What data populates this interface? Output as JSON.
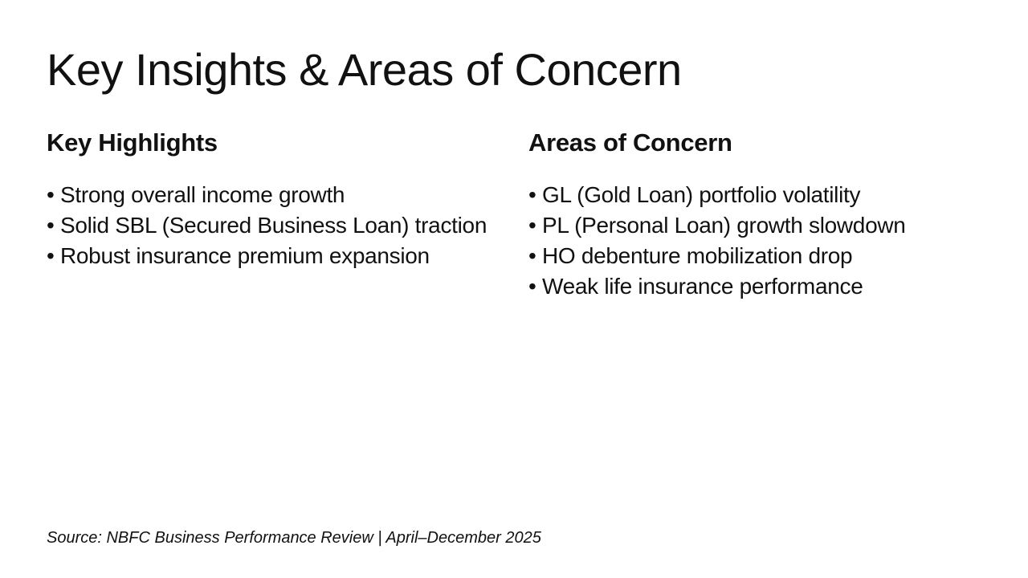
{
  "slide": {
    "title": "Key Insights & Areas of Concern",
    "bullet_char": "•",
    "columns": [
      {
        "heading": "Key Highlights",
        "bullets": [
          "Strong overall income growth",
          "Solid SBL (Secured Business Loan) traction",
          "Robust insurance premium expansion"
        ]
      },
      {
        "heading": "Areas of Concern",
        "bullets": [
          "GL (Gold Loan) portfolio volatility",
          "PL (Personal Loan) growth slowdown",
          "HO debenture mobilization drop",
          "Weak life insurance performance"
        ]
      }
    ],
    "footer": "Source: NBFC Business Performance Review | April–December 2025",
    "colors": {
      "background": "#ffffff",
      "text": "#111111"
    }
  }
}
